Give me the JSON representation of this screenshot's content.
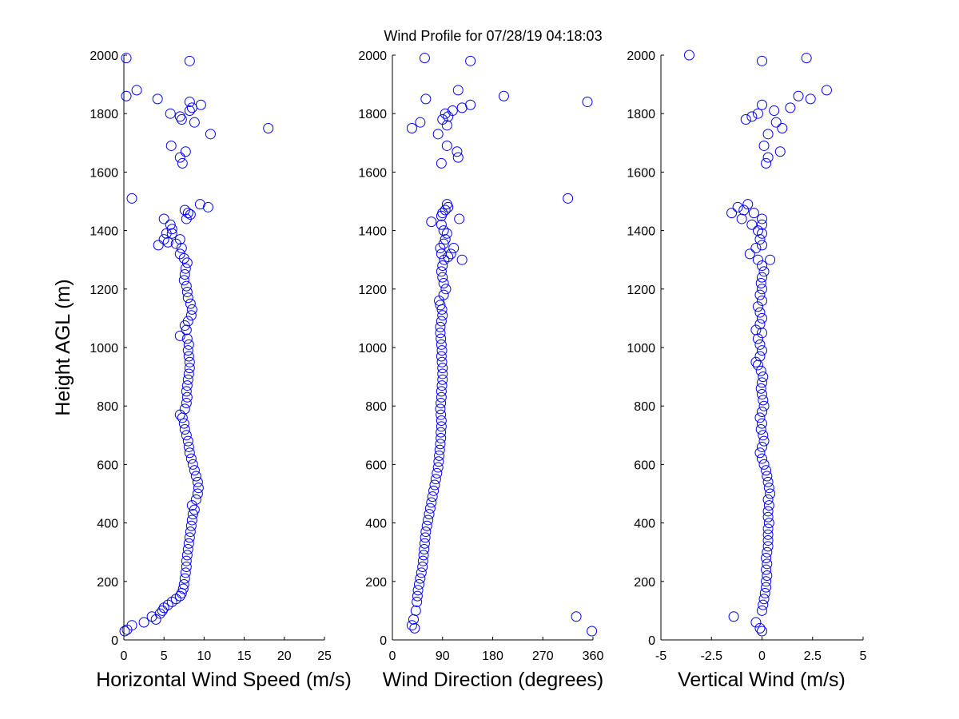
{
  "figure": {
    "title": "Wind Profile for  07/28/19 04:18:03",
    "ylabel": "Height AGL (m)"
  },
  "chart_data": [
    {
      "type": "scatter",
      "xlabel": "Horizontal Wind Speed (m/s)",
      "ylabel": "Height AGL (m)",
      "xlim": [
        0,
        25
      ],
      "ylim": [
        0,
        2000
      ],
      "xticks": [
        "0",
        "5",
        "10",
        "15",
        "20",
        "25"
      ],
      "xtick_values": [
        0,
        5,
        10,
        15,
        20,
        25
      ],
      "yticks": [
        "0",
        "200",
        "400",
        "600",
        "800",
        "1000",
        "1200",
        "1400",
        "1600",
        "1800",
        "2000"
      ],
      "ytick_values": [
        0,
        200,
        400,
        600,
        800,
        1000,
        1200,
        1400,
        1600,
        1800,
        2000
      ],
      "marker_color": "#0000ff",
      "points": [
        [
          0.1,
          30
        ],
        [
          0.4,
          35
        ],
        [
          1.0,
          50
        ],
        [
          2.5,
          60
        ],
        [
          3.5,
          80
        ],
        [
          4.0,
          70
        ],
        [
          4.5,
          90
        ],
        [
          4.8,
          100
        ],
        [
          5.0,
          110
        ],
        [
          5.5,
          120
        ],
        [
          6.0,
          130
        ],
        [
          6.5,
          140
        ],
        [
          7.0,
          150
        ],
        [
          7.2,
          160
        ],
        [
          7.4,
          175
        ],
        [
          7.5,
          190
        ],
        [
          7.6,
          210
        ],
        [
          7.7,
          230
        ],
        [
          7.8,
          250
        ],
        [
          7.8,
          270
        ],
        [
          7.9,
          290
        ],
        [
          8.0,
          310
        ],
        [
          8.1,
          330
        ],
        [
          8.2,
          350
        ],
        [
          8.3,
          370
        ],
        [
          8.4,
          390
        ],
        [
          8.5,
          410
        ],
        [
          8.6,
          430
        ],
        [
          8.8,
          445
        ],
        [
          8.5,
          460
        ],
        [
          9.0,
          480
        ],
        [
          9.2,
          500
        ],
        [
          9.3,
          520
        ],
        [
          9.2,
          540
        ],
        [
          9.0,
          560
        ],
        [
          8.8,
          580
        ],
        [
          8.6,
          600
        ],
        [
          8.4,
          620
        ],
        [
          8.2,
          640
        ],
        [
          8.1,
          660
        ],
        [
          8.0,
          680
        ],
        [
          7.8,
          700
        ],
        [
          7.6,
          720
        ],
        [
          7.5,
          740
        ],
        [
          7.3,
          760
        ],
        [
          7.0,
          770
        ],
        [
          7.6,
          790
        ],
        [
          7.8,
          810
        ],
        [
          7.9,
          830
        ],
        [
          7.8,
          850
        ],
        [
          7.9,
          870
        ],
        [
          8.0,
          890
        ],
        [
          8.1,
          910
        ],
        [
          8.2,
          930
        ],
        [
          8.2,
          950
        ],
        [
          8.1,
          970
        ],
        [
          8.0,
          990
        ],
        [
          8.1,
          1010
        ],
        [
          7.9,
          1030
        ],
        [
          7.0,
          1040
        ],
        [
          7.8,
          1060
        ],
        [
          7.6,
          1075
        ],
        [
          8.0,
          1090
        ],
        [
          8.4,
          1110
        ],
        [
          8.5,
          1130
        ],
        [
          8.3,
          1150
        ],
        [
          8.0,
          1170
        ],
        [
          7.9,
          1190
        ],
        [
          7.8,
          1210
        ],
        [
          7.5,
          1230
        ],
        [
          7.6,
          1250
        ],
        [
          7.7,
          1270
        ],
        [
          7.9,
          1290
        ],
        [
          7.5,
          1305
        ],
        [
          7.0,
          1320
        ],
        [
          7.2,
          1340
        ],
        [
          6.5,
          1355
        ],
        [
          7.0,
          1370
        ],
        [
          5.5,
          1360
        ],
        [
          4.3,
          1350
        ],
        [
          5.0,
          1370
        ],
        [
          5.3,
          1390
        ],
        [
          6.0,
          1390
        ],
        [
          6.0,
          1405
        ],
        [
          5.8,
          1420
        ],
        [
          5.0,
          1440
        ],
        [
          7.8,
          1440
        ],
        [
          8.0,
          1460
        ],
        [
          8.3,
          1455
        ],
        [
          7.6,
          1470
        ],
        [
          9.5,
          1490
        ],
        [
          10.5,
          1480
        ],
        [
          1.0,
          1510
        ],
        [
          7.3,
          1630
        ],
        [
          7.0,
          1650
        ],
        [
          7.7,
          1670
        ],
        [
          5.9,
          1690
        ],
        [
          18.0,
          1750
        ],
        [
          10.8,
          1730
        ],
        [
          8.8,
          1770
        ],
        [
          7.2,
          1780
        ],
        [
          7.0,
          1790
        ],
        [
          5.8,
          1800
        ],
        [
          8.2,
          1810
        ],
        [
          8.5,
          1820
        ],
        [
          9.6,
          1830
        ],
        [
          8.2,
          1840
        ],
        [
          4.2,
          1850
        ],
        [
          0.3,
          1860
        ],
        [
          1.6,
          1880
        ],
        [
          8.2,
          1980
        ],
        [
          0.3,
          1990
        ]
      ]
    },
    {
      "type": "scatter",
      "xlabel": "Wind Direction (degrees)",
      "ylabel": "",
      "xlim": [
        0,
        360
      ],
      "ylim": [
        0,
        2000
      ],
      "xticks": [
        "0",
        "90",
        "180",
        "270",
        "360"
      ],
      "xtick_values": [
        0,
        90,
        180,
        270,
        360
      ],
      "yticks": [
        "0",
        "200",
        "400",
        "600",
        "800",
        "1000",
        "1200",
        "1400",
        "1600",
        "1800",
        "2000"
      ],
      "ytick_values": [
        0,
        200,
        400,
        600,
        800,
        1000,
        1200,
        1400,
        1600,
        1800,
        2000
      ],
      "marker_color": "#0000ff",
      "points": [
        [
          35,
          50
        ],
        [
          40,
          40
        ],
        [
          38,
          70
        ],
        [
          42,
          100
        ],
        [
          44,
          130
        ],
        [
          45,
          150
        ],
        [
          46,
          170
        ],
        [
          48,
          190
        ],
        [
          50,
          210
        ],
        [
          52,
          230
        ],
        [
          54,
          250
        ],
        [
          55,
          270
        ],
        [
          56,
          290
        ],
        [
          57,
          310
        ],
        [
          58,
          330
        ],
        [
          59,
          350
        ],
        [
          60,
          370
        ],
        [
          62,
          390
        ],
        [
          64,
          410
        ],
        [
          66,
          430
        ],
        [
          68,
          450
        ],
        [
          70,
          470
        ],
        [
          72,
          490
        ],
        [
          74,
          510
        ],
        [
          76,
          530
        ],
        [
          78,
          550
        ],
        [
          80,
          570
        ],
        [
          82,
          590
        ],
        [
          83,
          610
        ],
        [
          84,
          630
        ],
        [
          85,
          650
        ],
        [
          86,
          670
        ],
        [
          87,
          690
        ],
        [
          87,
          710
        ],
        [
          88,
          730
        ],
        [
          88,
          750
        ],
        [
          87,
          770
        ],
        [
          86,
          790
        ],
        [
          87,
          810
        ],
        [
          88,
          830
        ],
        [
          88,
          850
        ],
        [
          89,
          870
        ],
        [
          90,
          890
        ],
        [
          90,
          910
        ],
        [
          90,
          930
        ],
        [
          89,
          950
        ],
        [
          88,
          970
        ],
        [
          89,
          990
        ],
        [
          88,
          1010
        ],
        [
          87,
          1030
        ],
        [
          86,
          1050
        ],
        [
          86,
          1070
        ],
        [
          88,
          1090
        ],
        [
          90,
          1110
        ],
        [
          89,
          1130
        ],
        [
          86,
          1145
        ],
        [
          84,
          1160
        ],
        [
          92,
          1180
        ],
        [
          96,
          1200
        ],
        [
          92,
          1220
        ],
        [
          90,
          1240
        ],
        [
          88,
          1260
        ],
        [
          90,
          1280
        ],
        [
          93,
          1300
        ],
        [
          88,
          1320
        ],
        [
          86,
          1340
        ],
        [
          92,
          1355
        ],
        [
          95,
          1370
        ],
        [
          98,
          1390
        ],
        [
          92,
          1400
        ],
        [
          70,
          1430
        ],
        [
          88,
          1420
        ],
        [
          120,
          1440
        ],
        [
          90,
          1460
        ],
        [
          95,
          1470
        ],
        [
          88,
          1450
        ],
        [
          100,
          1480
        ],
        [
          98,
          1490
        ],
        [
          315,
          1510
        ],
        [
          110,
          1340
        ],
        [
          100,
          1310
        ],
        [
          125,
          1300
        ],
        [
          105,
          1320
        ],
        [
          88,
          1630
        ],
        [
          118,
          1650
        ],
        [
          116,
          1670
        ],
        [
          98,
          1690
        ],
        [
          35,
          1750
        ],
        [
          82,
          1730
        ],
        [
          98,
          1760
        ],
        [
          50,
          1770
        ],
        [
          90,
          1780
        ],
        [
          100,
          1790
        ],
        [
          95,
          1800
        ],
        [
          108,
          1810
        ],
        [
          125,
          1820
        ],
        [
          140,
          1830
        ],
        [
          350,
          1840
        ],
        [
          60,
          1850
        ],
        [
          200,
          1860
        ],
        [
          118,
          1880
        ],
        [
          140,
          1980
        ],
        [
          58,
          1990
        ],
        [
          330,
          80
        ],
        [
          358,
          30
        ]
      ]
    },
    {
      "type": "scatter",
      "xlabel": "Vertical Wind (m/s)",
      "ylabel": "",
      "xlim": [
        -5,
        5
      ],
      "ylim": [
        0,
        2000
      ],
      "xticks": [
        "-5",
        "-2.5",
        "0",
        "2.5",
        "5"
      ],
      "xtick_values": [
        -5,
        -2.5,
        0,
        2.5,
        5
      ],
      "yticks": [
        "0",
        "200",
        "400",
        "600",
        "800",
        "1000",
        "1200",
        "1400",
        "1600",
        "1800",
        "2000"
      ],
      "ytick_values": [
        0,
        200,
        400,
        600,
        800,
        1000,
        1200,
        1400,
        1600,
        1800,
        2000
      ],
      "marker_color": "#0000ff",
      "points": [
        [
          0.0,
          30
        ],
        [
          -0.1,
          40
        ],
        [
          -0.3,
          60
        ],
        [
          -1.4,
          80
        ],
        [
          0.0,
          100
        ],
        [
          0.05,
          120
        ],
        [
          0.1,
          140
        ],
        [
          0.15,
          160
        ],
        [
          0.2,
          180
        ],
        [
          0.2,
          200
        ],
        [
          0.25,
          220
        ],
        [
          0.2,
          240
        ],
        [
          0.25,
          260
        ],
        [
          0.2,
          280
        ],
        [
          0.25,
          300
        ],
        [
          0.3,
          320
        ],
        [
          0.3,
          340
        ],
        [
          0.3,
          360
        ],
        [
          0.3,
          380
        ],
        [
          0.35,
          400
        ],
        [
          0.3,
          420
        ],
        [
          0.3,
          440
        ],
        [
          0.35,
          460
        ],
        [
          0.3,
          480
        ],
        [
          0.4,
          500
        ],
        [
          0.35,
          520
        ],
        [
          0.3,
          540
        ],
        [
          0.25,
          560
        ],
        [
          0.2,
          580
        ],
        [
          0.1,
          600
        ],
        [
          0.0,
          620
        ],
        [
          -0.1,
          640
        ],
        [
          0.0,
          660
        ],
        [
          0.1,
          680
        ],
        [
          0.05,
          700
        ],
        [
          -0.05,
          720
        ],
        [
          0.0,
          740
        ],
        [
          -0.1,
          760
        ],
        [
          0.0,
          780
        ],
        [
          0.1,
          800
        ],
        [
          0.05,
          820
        ],
        [
          0.0,
          840
        ],
        [
          -0.05,
          860
        ],
        [
          0.0,
          880
        ],
        [
          0.05,
          900
        ],
        [
          -0.05,
          920
        ],
        [
          -0.2,
          940
        ],
        [
          -0.3,
          950
        ],
        [
          -0.1,
          970
        ],
        [
          0.0,
          990
        ],
        [
          -0.1,
          1010
        ],
        [
          -0.2,
          1030
        ],
        [
          0.0,
          1050
        ],
        [
          -0.3,
          1060
        ],
        [
          -0.1,
          1080
        ],
        [
          0.0,
          1100
        ],
        [
          -0.1,
          1120
        ],
        [
          -0.2,
          1140
        ],
        [
          0.0,
          1160
        ],
        [
          -0.1,
          1180
        ],
        [
          0.0,
          1200
        ],
        [
          -0.05,
          1220
        ],
        [
          0.0,
          1240
        ],
        [
          0.1,
          1260
        ],
        [
          0.0,
          1280
        ],
        [
          -0.2,
          1300
        ],
        [
          -0.6,
          1320
        ],
        [
          0.4,
          1300
        ],
        [
          -0.3,
          1340
        ],
        [
          0.0,
          1350
        ],
        [
          -0.1,
          1370
        ],
        [
          0.0,
          1390
        ],
        [
          -0.2,
          1400
        ],
        [
          0.0,
          1420
        ],
        [
          -0.5,
          1420
        ],
        [
          -1.0,
          1440
        ],
        [
          -0.9,
          1470
        ],
        [
          -0.7,
          1490
        ],
        [
          -1.2,
          1480
        ],
        [
          -0.4,
          1460
        ],
        [
          -1.5,
          1460
        ],
        [
          0.0,
          1440
        ],
        [
          0.2,
          1630
        ],
        [
          0.3,
          1650
        ],
        [
          0.9,
          1670
        ],
        [
          0.1,
          1690
        ],
        [
          0.3,
          1730
        ],
        [
          1.0,
          1750
        ],
        [
          0.7,
          1770
        ],
        [
          -0.8,
          1780
        ],
        [
          -0.5,
          1790
        ],
        [
          -0.2,
          1800
        ],
        [
          0.6,
          1810
        ],
        [
          0.0,
          1830
        ],
        [
          1.4,
          1820
        ],
        [
          2.4,
          1850
        ],
        [
          1.8,
          1860
        ],
        [
          3.2,
          1880
        ],
        [
          -3.6,
          2000
        ],
        [
          0.0,
          1980
        ],
        [
          2.2,
          1990
        ]
      ]
    }
  ]
}
